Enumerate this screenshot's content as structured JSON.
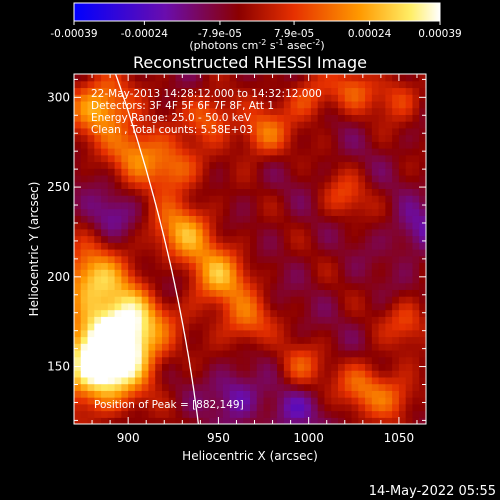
{
  "chart_data": {
    "type": "heatmap",
    "title": "Reconstructed RHESSI Image",
    "xlabel": "Heliocentric X (arcsec)",
    "ylabel": "Heliocentric Y (arcsec)",
    "xlim": [
      870,
      1065
    ],
    "ylim": [
      118,
      313
    ],
    "x_ticks": [
      900,
      950,
      1000,
      1050
    ],
    "y_ticks": [
      150,
      200,
      250,
      300
    ],
    "colorbar": {
      "ticks": [
        "-0.00039",
        "-0.00024",
        "-7.9e-05",
        "7.9e-05",
        "0.00024",
        "0.00039"
      ],
      "tick_values": [
        -0.00039,
        -0.00024,
        -7.9e-05,
        7.9e-05,
        0.00024,
        0.00039
      ],
      "range": [
        -0.00039,
        0.00039
      ],
      "unit_line1": "(photons cm",
      "unit_exp1": "-2",
      "unit_mid": " s",
      "unit_exp2": "-1",
      "unit_mid2": " asec",
      "unit_exp3": "-2",
      "unit_end": ")"
    },
    "annotations": [
      "22-May-2013 14:28:12.000 to 14:32:12.000",
      "Detectors: 3F 4F 5F 6F 7F 8F, Att 1",
      "Energy Range: 25.0 - 50.0 keV",
      "Clean , Total counts: 5.58E+03"
    ],
    "peak_label": "Position of Peak = [882,149]",
    "peak": [
      882,
      149
    ],
    "limb": {
      "center": [
        0,
        0
      ],
      "radius_arcsec": 946.3
    },
    "blobs": [
      {
        "x": 882,
        "y": 149,
        "amp": 0.00039,
        "sigma": 16
      },
      {
        "x": 900,
        "y": 178,
        "amp": 0.00034,
        "sigma": 16
      },
      {
        "x": 878,
        "y": 200,
        "amp": 0.0003,
        "sigma": 12
      },
      {
        "x": 895,
        "y": 160,
        "amp": 0.00028,
        "sigma": 14
      },
      {
        "x": 885,
        "y": 295,
        "amp": 0.00032,
        "sigma": 12
      },
      {
        "x": 905,
        "y": 270,
        "amp": 0.00024,
        "sigma": 11
      },
      {
        "x": 930,
        "y": 225,
        "amp": 0.00027,
        "sigma": 12
      },
      {
        "x": 925,
        "y": 260,
        "amp": 0.00022,
        "sigma": 10
      },
      {
        "x": 950,
        "y": 200,
        "amp": 0.00028,
        "sigma": 12
      },
      {
        "x": 965,
        "y": 175,
        "amp": 0.0002,
        "sigma": 10
      },
      {
        "x": 945,
        "y": 290,
        "amp": 0.0002,
        "sigma": 10
      },
      {
        "x": 975,
        "y": 280,
        "amp": 0.00022,
        "sigma": 10
      },
      {
        "x": 1000,
        "y": 300,
        "amp": 0.00018,
        "sigma": 9
      },
      {
        "x": 1025,
        "y": 305,
        "amp": 0.00016,
        "sigma": 9
      },
      {
        "x": 1050,
        "y": 300,
        "amp": 0.00016,
        "sigma": 9
      },
      {
        "x": 1020,
        "y": 245,
        "amp": 0.00014,
        "sigma": 9
      },
      {
        "x": 1055,
        "y": 175,
        "amp": 0.00016,
        "sigma": 9
      },
      {
        "x": 1030,
        "y": 140,
        "amp": 0.0002,
        "sigma": 10
      },
      {
        "x": 995,
        "y": 150,
        "amp": 0.00016,
        "sigma": 9
      },
      {
        "x": 1048,
        "y": 132,
        "amp": 0.00018,
        "sigma": 9
      },
      {
        "x": 918,
        "y": 195,
        "amp": -0.00012,
        "sigma": 10
      },
      {
        "x": 960,
        "y": 135,
        "amp": -0.00014,
        "sigma": 10
      },
      {
        "x": 990,
        "y": 125,
        "amp": -0.00012,
        "sigma": 10
      },
      {
        "x": 1060,
        "y": 225,
        "amp": -0.00012,
        "sigma": 10
      },
      {
        "x": 890,
        "y": 235,
        "amp": -0.0001,
        "sigma": 9
      }
    ]
  },
  "footer": {
    "date": "14-May-2022 05:55"
  },
  "colors": {
    "background": "#000000",
    "text": "#ffffff",
    "limb": "#ffffff"
  }
}
